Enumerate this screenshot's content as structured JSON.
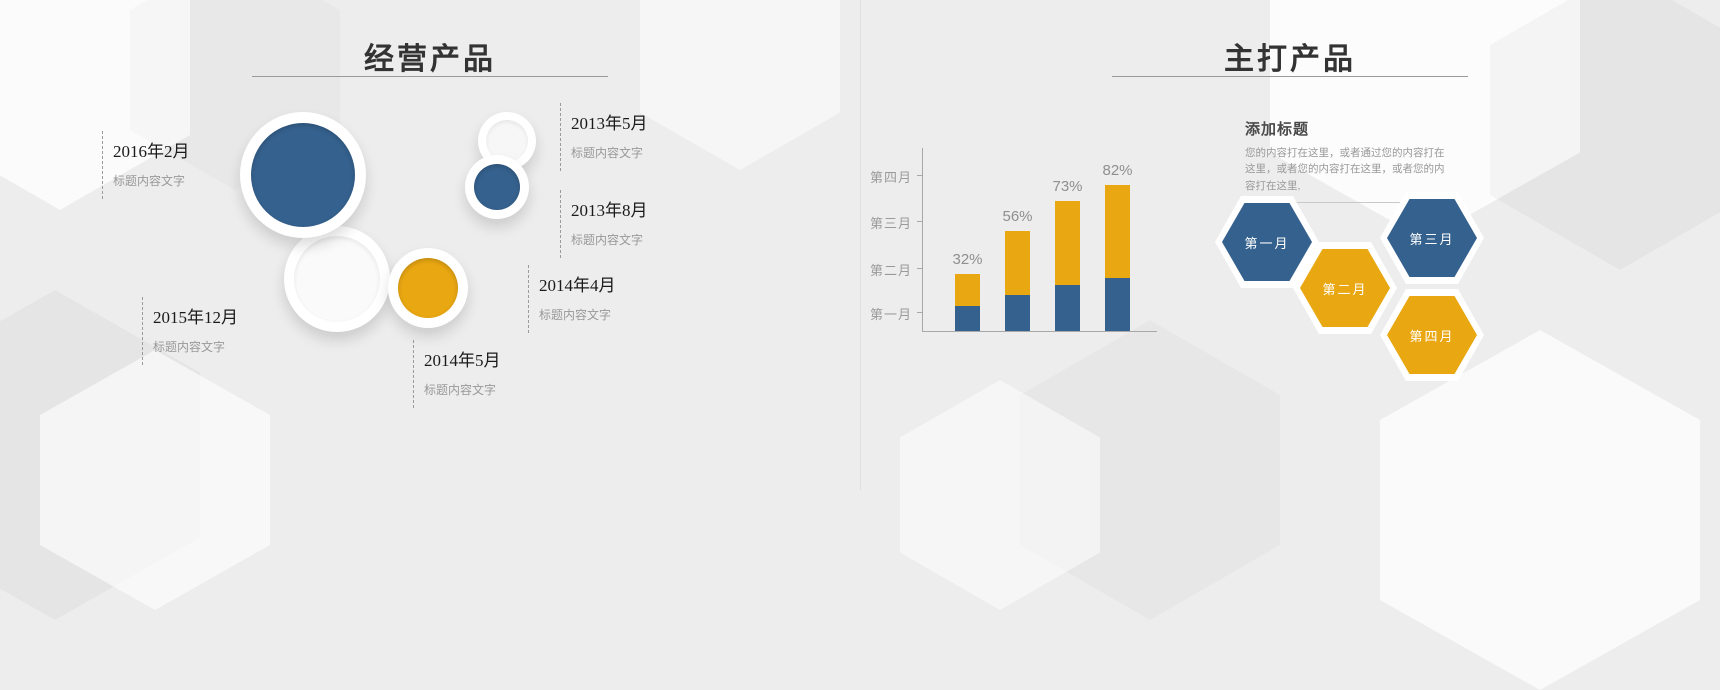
{
  "slides": {
    "left": {
      "title": "经营产品",
      "items": [
        {
          "date": "2016年2月",
          "desc": "标题内容文字"
        },
        {
          "date": "2013年5月",
          "desc": "标题内容文字"
        },
        {
          "date": "2013年8月",
          "desc": "标题内容文字"
        },
        {
          "date": "2014年4月",
          "desc": "标题内容文字"
        },
        {
          "date": "2015年12月",
          "desc": "标题内容文字"
        },
        {
          "date": "2014年5月",
          "desc": "标题内容文字"
        }
      ]
    },
    "right": {
      "title": "主打产品",
      "callout": {
        "title": "添加标题",
        "body": "您的内容打在这里，或者通过您的内容打在这里，或者您的内容打在这里，或者您的内容打在这里,"
      },
      "hexagons": [
        {
          "label": "第一月",
          "color": "#35618e"
        },
        {
          "label": "第二月",
          "color": "#e9a712"
        },
        {
          "label": "第三月",
          "color": "#35618e"
        },
        {
          "label": "第四月",
          "color": "#e9a712"
        }
      ]
    }
  },
  "chart_data": {
    "type": "bar",
    "stacked": true,
    "title": "",
    "xlabel": "",
    "ylabel": "",
    "labels": [
      "32%",
      "56%",
      "73%",
      "82%"
    ],
    "totals": [
      32,
      56,
      73,
      82
    ],
    "series": [
      {
        "name": "series-blue",
        "color": "#35618e",
        "values": [
          14,
          20,
          26,
          30
        ]
      },
      {
        "name": "series-yellow",
        "color": "#e9a712",
        "values": [
          18,
          36,
          47,
          52
        ]
      }
    ],
    "y_axis_labels": [
      "第四月",
      "第三月",
      "第二月",
      "第一月"
    ],
    "ylim": [
      0,
      100
    ],
    "legend": "none",
    "grid": false
  },
  "colors": {
    "blue": "#35618e",
    "yellow": "#e9a712",
    "background": "#ededed"
  }
}
